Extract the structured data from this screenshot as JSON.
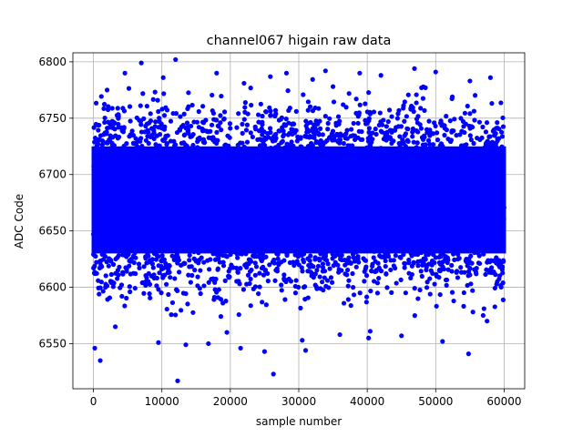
{
  "chart_data": {
    "type": "scatter",
    "title": "channel067 higain raw data",
    "xlabel": "sample number",
    "ylabel": "ADC Code",
    "xlim": [
      -3000,
      63000
    ],
    "ylim": [
      6510,
      6808
    ],
    "x_ticks": [
      0,
      10000,
      20000,
      30000,
      40000,
      50000,
      60000
    ],
    "y_ticks": [
      6550,
      6600,
      6650,
      6700,
      6750,
      6800
    ],
    "grid": true,
    "marker_color": "#0000ff",
    "x_range": [
      0,
      60000
    ],
    "core_band": [
      6630,
      6725
    ],
    "series": [
      {
        "outliers": [
          [
            7000,
            6799
          ],
          [
            12000,
            6802
          ],
          [
            1000,
            6535
          ],
          [
            200,
            6546
          ],
          [
            12300,
            6517
          ],
          [
            26300,
            6523
          ],
          [
            54800,
            6541
          ],
          [
            31000,
            6544
          ],
          [
            25000,
            6543
          ],
          [
            21500,
            6546
          ],
          [
            16800,
            6550
          ],
          [
            9500,
            6551
          ],
          [
            13500,
            6549
          ],
          [
            33900,
            6792
          ],
          [
            46900,
            6794
          ],
          [
            50000,
            6791
          ],
          [
            38900,
            6790
          ],
          [
            58000,
            6786
          ],
          [
            4600,
            6790
          ],
          [
            10200,
            6786
          ],
          [
            18000,
            6790
          ],
          [
            28200,
            6790
          ],
          [
            42000,
            6788
          ],
          [
            55000,
            6783
          ],
          [
            2000,
            6775
          ],
          [
            22000,
            6781
          ],
          [
            35000,
            6778
          ],
          [
            48500,
            6777
          ],
          [
            30500,
            6553
          ],
          [
            40200,
            6555
          ],
          [
            45000,
            6557
          ],
          [
            51000,
            6552
          ],
          [
            57500,
            6570
          ],
          [
            3200,
            6565
          ],
          [
            19500,
            6560
          ],
          [
            36000,
            6558
          ]
        ]
      }
    ]
  }
}
